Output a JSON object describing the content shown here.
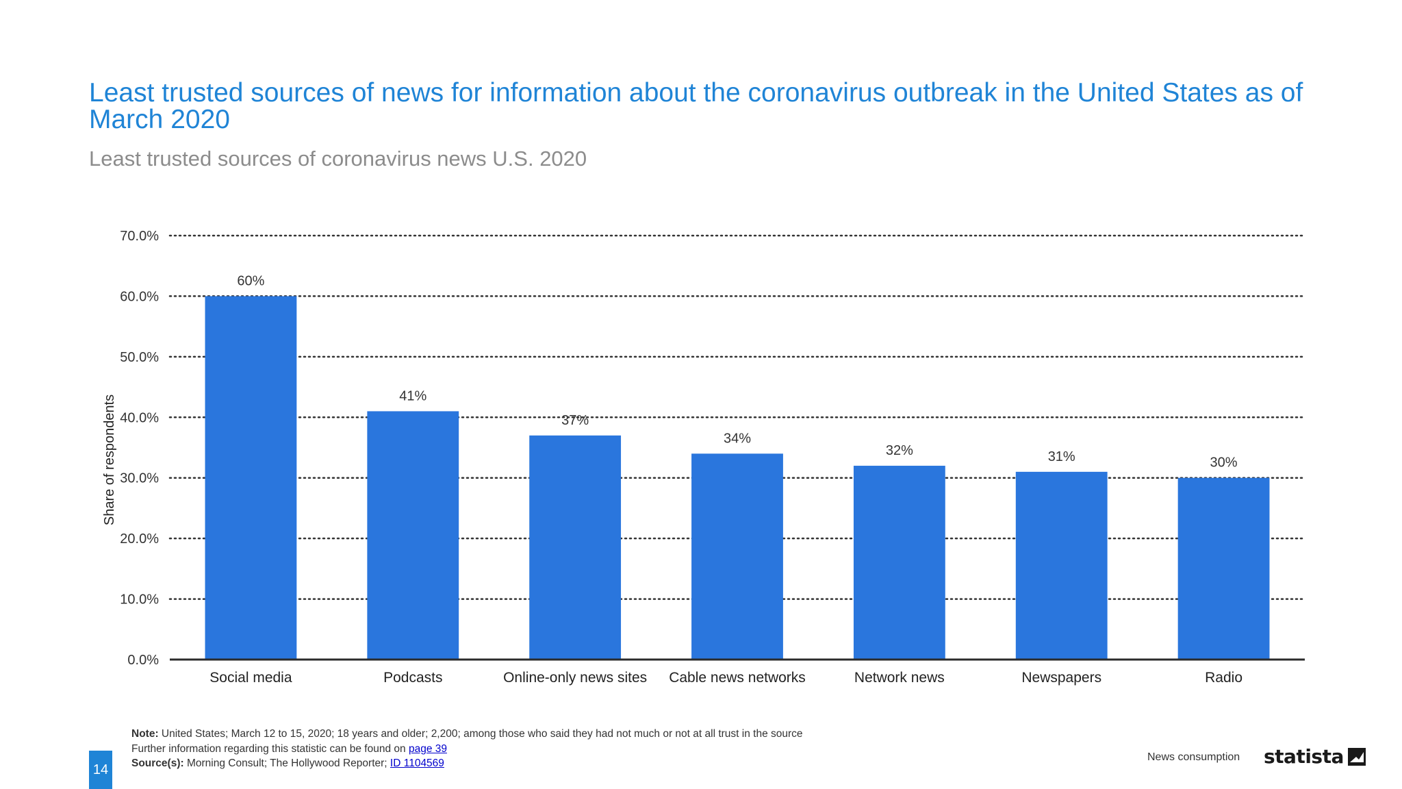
{
  "header": {
    "title": "Least trusted sources of news for information about the coronavirus outbreak in the United States as of March 2020",
    "subtitle": "Least trusted sources of coronavirus news U.S. 2020"
  },
  "chart_data": {
    "type": "bar",
    "categories": [
      "Social media",
      "Podcasts",
      "Online-only news sites",
      "Cable news networks",
      "Network news",
      "Newspapers",
      "Radio"
    ],
    "values": [
      60,
      41,
      37,
      34,
      32,
      31,
      30
    ],
    "data_labels": [
      "60%",
      "41%",
      "37%",
      "34%",
      "32%",
      "31%",
      "30%"
    ],
    "ylabel": "Share of respondents",
    "xlabel": "",
    "ylim": [
      0,
      70
    ],
    "yticks": [
      0,
      10,
      20,
      30,
      40,
      50,
      60,
      70
    ],
    "ytick_labels": [
      "0.0%",
      "10.0%",
      "20.0%",
      "30.0%",
      "40.0%",
      "50.0%",
      "60.0%",
      "70.0%"
    ],
    "grid": true,
    "bar_color": "#2a76dd"
  },
  "footer": {
    "note_label": "Note:",
    "note_text": "United States; March 12 to 15, 2020; 18 years and older; 2,200; among those who said they had not much or not at all trust in the source",
    "further_info_text": "Further information regarding this statistic can be found on",
    "further_info_link": "page 39",
    "source_label": "Source(s):",
    "source_text": "Morning Consult; The Hollywood Reporter;",
    "source_link": "ID 1104569",
    "page_number": "14",
    "category": "News consumption",
    "logo_text": "statista"
  },
  "colors": {
    "title": "#1f84d6",
    "subtitle": "#8c8c8c",
    "accent": "#1f84d6"
  }
}
